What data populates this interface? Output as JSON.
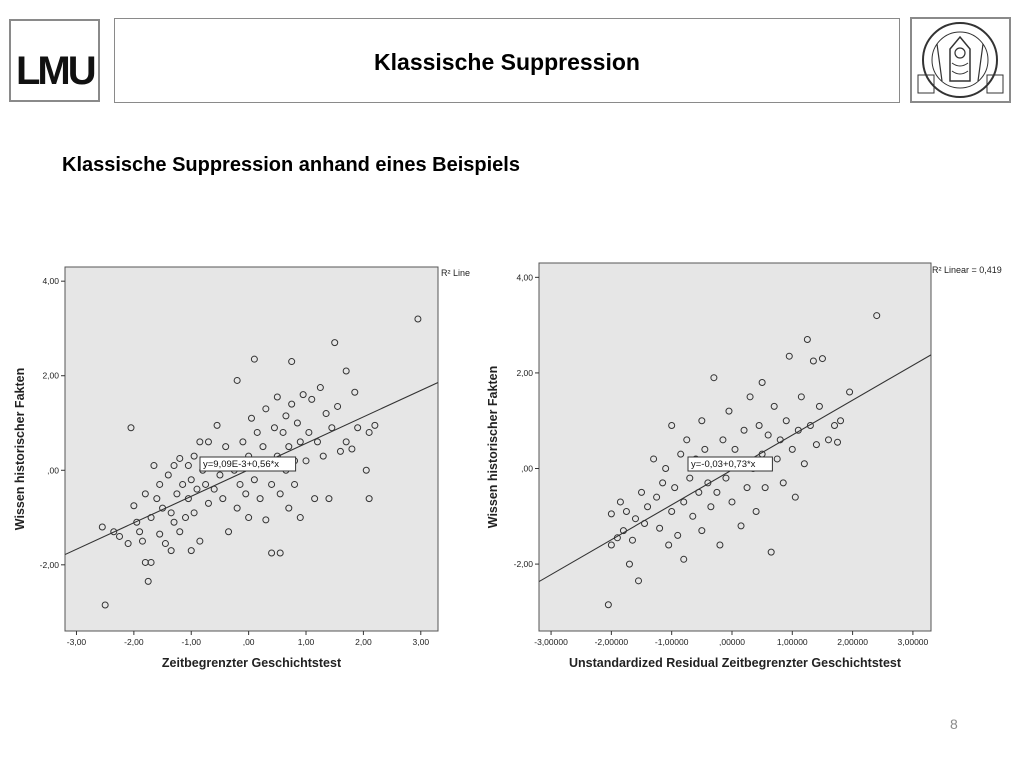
{
  "header": {
    "logo_text": "LMU",
    "title": "Klassische Suppression",
    "seal_name": "university-seal"
  },
  "subtitle": "Klassische Suppression anhand eines Beispiels",
  "page_number": "8",
  "colors": {
    "plot_bg": "#e6e6e6",
    "border": "#8a8a8a",
    "marker": "#333333"
  },
  "chart_data": [
    {
      "type": "scatter",
      "xlabel": "Zeitbegrenzter Geschichtstest",
      "ylabel": "Wissen historischer Fakten",
      "xlim": [
        -3.2,
        3.3
      ],
      "ylim": [
        -3.4,
        4.3
      ],
      "xticks": [
        -3,
        -2,
        -1,
        0,
        1,
        2,
        3
      ],
      "xtick_labels": [
        "-3,00",
        "-2,00",
        "-1,00",
        ",00",
        "1,00",
        "2,00",
        "3,00"
      ],
      "yticks": [
        -2,
        0,
        2,
        4
      ],
      "ytick_labels": [
        "-2,00",
        ",00",
        "2,00",
        "4,00"
      ],
      "r2_label": "R² Line",
      "fit_equation": "y=9,09E-3+0,56*x",
      "fit": {
        "intercept": 0.00909,
        "slope": 0.56
      },
      "points": [
        [
          -2.55,
          -1.2
        ],
        [
          -2.5,
          -2.85
        ],
        [
          -2.35,
          -1.3
        ],
        [
          -2.25,
          -1.4
        ],
        [
          -2.1,
          -1.55
        ],
        [
          -2.0,
          -0.75
        ],
        [
          -2.05,
          0.9
        ],
        [
          -1.95,
          -1.1
        ],
        [
          -1.9,
          -1.3
        ],
        [
          -1.85,
          -1.5
        ],
        [
          -1.8,
          -0.5
        ],
        [
          -1.8,
          -1.95
        ],
        [
          -1.75,
          -2.35
        ],
        [
          -1.7,
          -1.95
        ],
        [
          -1.7,
          -1.0
        ],
        [
          -1.65,
          0.1
        ],
        [
          -1.6,
          -0.6
        ],
        [
          -1.55,
          -0.3
        ],
        [
          -1.55,
          -1.35
        ],
        [
          -1.5,
          -0.8
        ],
        [
          -1.45,
          -1.55
        ],
        [
          -1.4,
          -0.1
        ],
        [
          -1.35,
          -1.7
        ],
        [
          -1.35,
          -0.9
        ],
        [
          -1.3,
          0.1
        ],
        [
          -1.3,
          -1.1
        ],
        [
          -1.25,
          -0.5
        ],
        [
          -1.2,
          0.25
        ],
        [
          -1.2,
          -1.3
        ],
        [
          -1.15,
          -0.3
        ],
        [
          -1.1,
          -1.0
        ],
        [
          -1.05,
          0.1
        ],
        [
          -1.05,
          -0.6
        ],
        [
          -1.0,
          -0.2
        ],
        [
          -1.0,
          -1.7
        ],
        [
          -0.95,
          0.3
        ],
        [
          -0.95,
          -0.9
        ],
        [
          -0.9,
          -0.4
        ],
        [
          -0.85,
          0.6
        ],
        [
          -0.85,
          -1.5
        ],
        [
          -0.8,
          0.0
        ],
        [
          -0.75,
          -0.3
        ],
        [
          -0.7,
          0.6
        ],
        [
          -0.7,
          -0.7
        ],
        [
          -0.65,
          0.2
        ],
        [
          -0.6,
          -0.4
        ],
        [
          -0.55,
          0.95
        ],
        [
          -0.5,
          -0.1
        ],
        [
          -0.45,
          -0.6
        ],
        [
          -0.4,
          0.5
        ],
        [
          -0.35,
          -1.3
        ],
        [
          -0.3,
          0.2
        ],
        [
          -0.25,
          0.0
        ],
        [
          -0.2,
          -0.8
        ],
        [
          -0.2,
          1.9
        ],
        [
          -0.15,
          -0.3
        ],
        [
          -0.1,
          0.6
        ],
        [
          -0.05,
          -0.5
        ],
        [
          0.0,
          0.3
        ],
        [
          0.0,
          -1.0
        ],
        [
          0.05,
          1.1
        ],
        [
          0.1,
          -0.2
        ],
        [
          0.1,
          2.35
        ],
        [
          0.15,
          0.8
        ],
        [
          0.2,
          -0.6
        ],
        [
          0.25,
          0.5
        ],
        [
          0.3,
          -1.05
        ],
        [
          0.3,
          1.3
        ],
        [
          0.35,
          0.1
        ],
        [
          0.4,
          -0.3
        ],
        [
          0.4,
          -1.75
        ],
        [
          0.45,
          0.9
        ],
        [
          0.5,
          0.3
        ],
        [
          0.5,
          1.55
        ],
        [
          0.55,
          -0.5
        ],
        [
          0.55,
          -1.75
        ],
        [
          0.6,
          0.8
        ],
        [
          0.65,
          0.0
        ],
        [
          0.65,
          1.15
        ],
        [
          0.7,
          0.5
        ],
        [
          0.7,
          -0.8
        ],
        [
          0.75,
          2.3
        ],
        [
          0.75,
          1.4
        ],
        [
          0.8,
          0.2
        ],
        [
          0.8,
          -0.3
        ],
        [
          0.85,
          1.0
        ],
        [
          0.9,
          0.6
        ],
        [
          0.9,
          -1.0
        ],
        [
          0.95,
          1.6
        ],
        [
          1.0,
          0.2
        ],
        [
          1.05,
          0.8
        ],
        [
          1.1,
          1.5
        ],
        [
          1.15,
          -0.6
        ],
        [
          1.2,
          0.6
        ],
        [
          1.25,
          1.75
        ],
        [
          1.3,
          0.3
        ],
        [
          1.35,
          1.2
        ],
        [
          1.4,
          -0.6
        ],
        [
          1.45,
          0.9
        ],
        [
          1.5,
          2.7
        ],
        [
          1.55,
          1.35
        ],
        [
          1.6,
          0.4
        ],
        [
          1.7,
          2.1
        ],
        [
          1.7,
          0.6
        ],
        [
          1.8,
          0.45
        ],
        [
          1.85,
          1.65
        ],
        [
          1.9,
          0.9
        ],
        [
          2.05,
          0.0
        ],
        [
          2.1,
          0.8
        ],
        [
          2.1,
          -0.6
        ],
        [
          2.2,
          0.95
        ],
        [
          2.95,
          3.2
        ]
      ]
    },
    {
      "type": "scatter",
      "xlabel": "Unstandardized Residual Zeitbegrenzter Geschichtstest",
      "ylabel": "Wissen historischer Fakten",
      "xlim": [
        -3.2,
        3.3
      ],
      "ylim": [
        -3.4,
        4.3
      ],
      "xticks": [
        -3,
        -2,
        -1,
        0,
        1,
        2,
        3
      ],
      "xtick_labels": [
        "-3,00000",
        "-2,00000",
        "-1,00000",
        ",00000",
        "1,00000",
        "2,00000",
        "3,00000"
      ],
      "yticks": [
        -2,
        0,
        2,
        4
      ],
      "ytick_labels": [
        "-2,00",
        ",00",
        "2,00",
        "4,00"
      ],
      "r2_label": "R² Linear = 0,419",
      "fit_equation": "y=-0,03+0,73*x",
      "fit": {
        "intercept": -0.03,
        "slope": 0.73
      },
      "points": [
        [
          -2.05,
          -2.85
        ],
        [
          -2.0,
          -1.6
        ],
        [
          -2.0,
          -0.95
        ],
        [
          -1.9,
          -1.45
        ],
        [
          -1.85,
          -0.7
        ],
        [
          -1.8,
          -1.3
        ],
        [
          -1.75,
          -0.9
        ],
        [
          -1.7,
          -2.0
        ],
        [
          -1.65,
          -1.5
        ],
        [
          -1.6,
          -1.05
        ],
        [
          -1.55,
          -2.35
        ],
        [
          -1.5,
          -0.5
        ],
        [
          -1.45,
          -1.15
        ],
        [
          -1.4,
          -0.8
        ],
        [
          -1.3,
          0.2
        ],
        [
          -1.25,
          -0.6
        ],
        [
          -1.2,
          -1.25
        ],
        [
          -1.15,
          -0.3
        ],
        [
          -1.1,
          0.0
        ],
        [
          -1.05,
          -1.6
        ],
        [
          -1.0,
          -0.9
        ],
        [
          -1.0,
          0.9
        ],
        [
          -0.95,
          -0.4
        ],
        [
          -0.9,
          -1.4
        ],
        [
          -0.85,
          0.3
        ],
        [
          -0.8,
          -0.7
        ],
        [
          -0.8,
          -1.9
        ],
        [
          -0.75,
          0.6
        ],
        [
          -0.7,
          -0.2
        ],
        [
          -0.65,
          -1.0
        ],
        [
          -0.6,
          0.2
        ],
        [
          -0.55,
          -0.5
        ],
        [
          -0.5,
          1.0
        ],
        [
          -0.5,
          -1.3
        ],
        [
          -0.45,
          0.4
        ],
        [
          -0.4,
          -0.3
        ],
        [
          -0.35,
          -0.8
        ],
        [
          -0.3,
          1.9
        ],
        [
          -0.3,
          0.1
        ],
        [
          -0.25,
          -0.5
        ],
        [
          -0.2,
          -1.6
        ],
        [
          -0.15,
          0.6
        ],
        [
          -0.1,
          -0.2
        ],
        [
          -0.05,
          1.2
        ],
        [
          0.0,
          -0.7
        ],
        [
          0.05,
          0.4
        ],
        [
          0.1,
          0.1
        ],
        [
          0.15,
          -1.2
        ],
        [
          0.2,
          0.8
        ],
        [
          0.25,
          -0.4
        ],
        [
          0.3,
          1.5
        ],
        [
          0.35,
          0.0
        ],
        [
          0.4,
          -0.9
        ],
        [
          0.45,
          0.9
        ],
        [
          0.5,
          0.3
        ],
        [
          0.5,
          1.8
        ],
        [
          0.55,
          -0.4
        ],
        [
          0.6,
          0.7
        ],
        [
          0.65,
          -1.75
        ],
        [
          0.7,
          1.3
        ],
        [
          0.75,
          0.2
        ],
        [
          0.8,
          0.6
        ],
        [
          0.85,
          -0.3
        ],
        [
          0.9,
          1.0
        ],
        [
          0.95,
          2.35
        ],
        [
          1.0,
          0.4
        ],
        [
          1.05,
          -0.6
        ],
        [
          1.1,
          0.8
        ],
        [
          1.15,
          1.5
        ],
        [
          1.2,
          0.1
        ],
        [
          1.25,
          2.7
        ],
        [
          1.3,
          0.9
        ],
        [
          1.35,
          2.25
        ],
        [
          1.4,
          0.5
        ],
        [
          1.45,
          1.3
        ],
        [
          1.5,
          2.3
        ],
        [
          1.6,
          0.6
        ],
        [
          1.7,
          0.9
        ],
        [
          1.75,
          0.55
        ],
        [
          1.8,
          1.0
        ],
        [
          1.95,
          1.6
        ],
        [
          2.4,
          3.2
        ]
      ]
    }
  ]
}
